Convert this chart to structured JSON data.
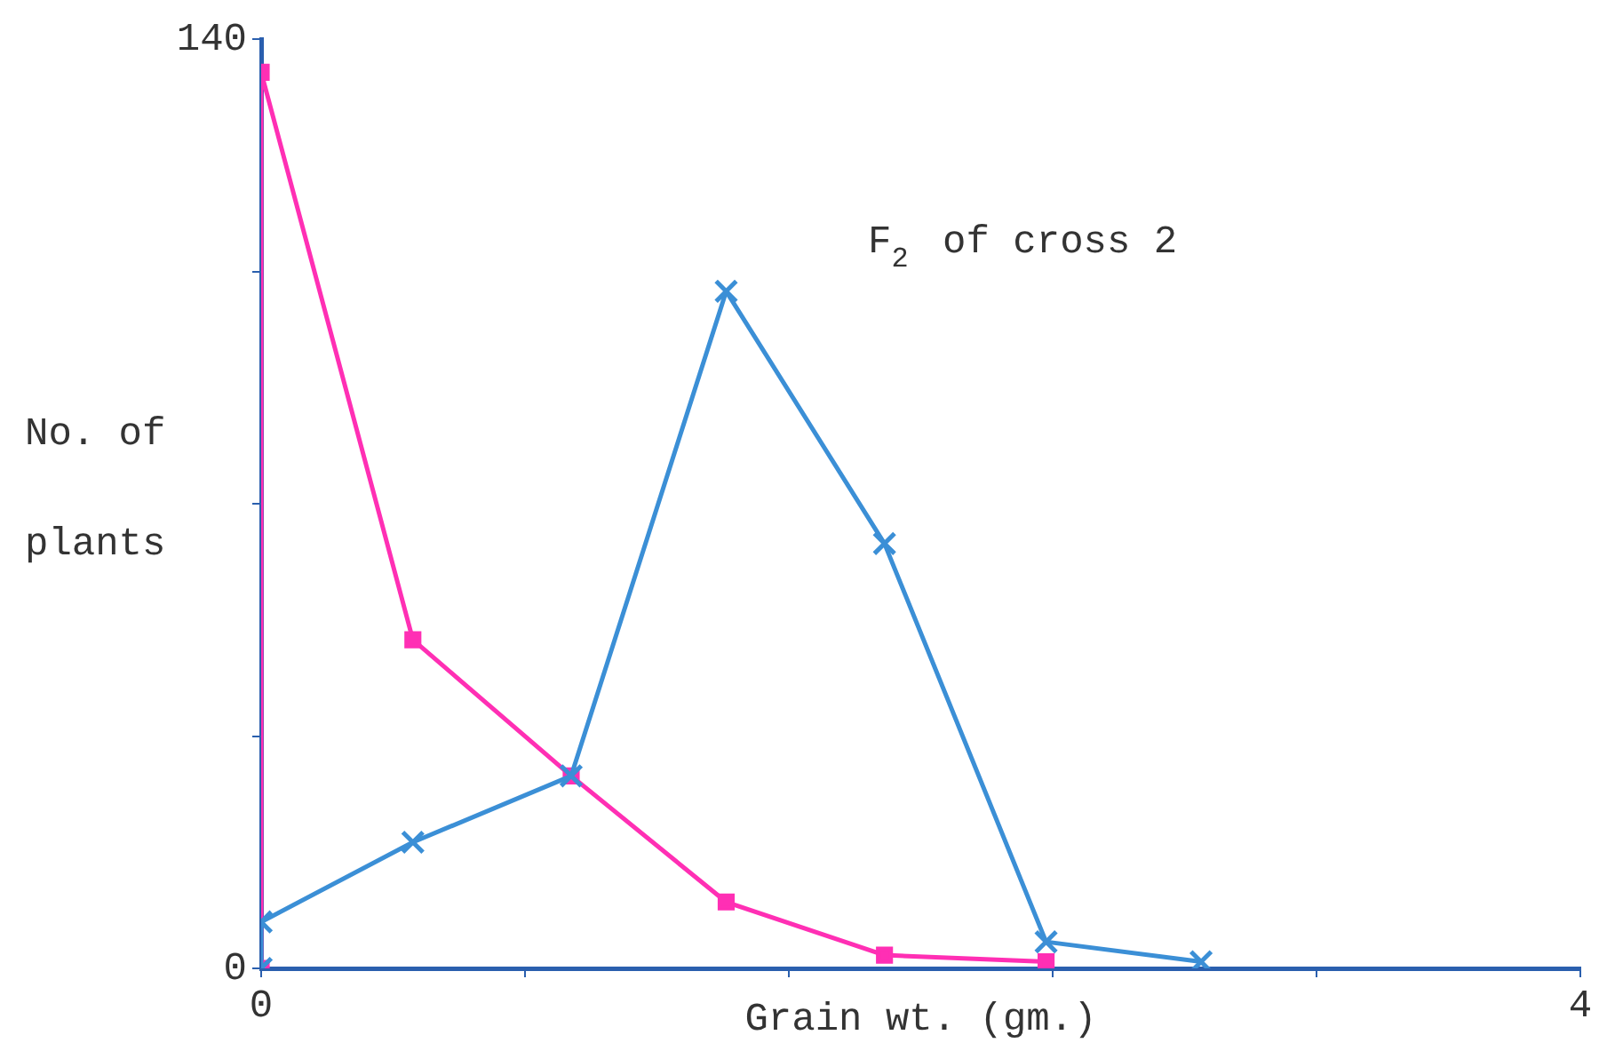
{
  "chart_data": {
    "type": "line",
    "title": "F$_{2}$ of cross 2",
    "xlabel": "Grain wt. (gm.)",
    "ylabel": "No. of plants",
    "xlim": [
      0,
      4
    ],
    "xticks": [
      0,
      {
        "value": 0.8,
        "label": null
      },
      {
        "value": 1.6,
        "label": null
      },
      {
        "value": 2.4,
        "label": null
      },
      {
        "value": 3.2,
        "label": null
      },
      4
    ],
    "ylim": [
      0,
      140
    ],
    "yticks": [
      0,
      {
        "value": 35,
        "label": null
      },
      {
        "value": 70,
        "label": null
      },
      {
        "value": 105,
        "label": null
      },
      140
    ],
    "grid": false,
    "legend": false,
    "series": [
      {
        "color": "#ff2fb4",
        "marker": "square",
        "x": [
          0,
          0,
          0.46,
          0.94,
          1.41,
          1.89,
          2.38
        ],
        "values": [
          0,
          135,
          49.5,
          29,
          10,
          2,
          1
        ]
      },
      {
        "color": "#3b8fd6",
        "marker": "cross",
        "x": [
          0,
          0,
          0.46,
          0.94,
          1.41,
          1.89,
          2.38,
          2.85
        ],
        "values": [
          0,
          7,
          19,
          29,
          102,
          64,
          4,
          1
        ]
      }
    ]
  }
}
